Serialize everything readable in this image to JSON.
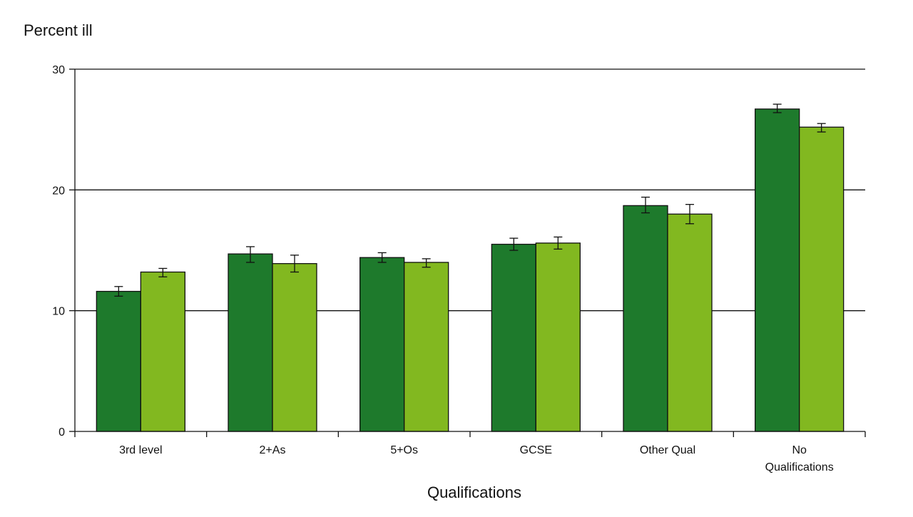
{
  "chart_data": {
    "type": "bar",
    "ylabel": "Percent ill",
    "xlabel": "Qualifications",
    "ylim": [
      0,
      30
    ],
    "yticks": [
      0,
      10,
      20,
      30
    ],
    "grid": true,
    "categories": [
      [
        "3rd level"
      ],
      [
        "2+As"
      ],
      [
        "5+Os"
      ],
      [
        "GCSE"
      ],
      [
        "Other Qual"
      ],
      [
        "No",
        "Qualifications"
      ]
    ],
    "series": [
      {
        "color": "#1e7a2c",
        "values": [
          11.6,
          14.7,
          14.4,
          15.5,
          18.7,
          26.7
        ],
        "err_low": [
          11.2,
          14.0,
          14.0,
          15.0,
          18.1,
          26.4
        ],
        "err_high": [
          12.0,
          15.3,
          14.8,
          16.0,
          19.4,
          27.1
        ]
      },
      {
        "color": "#82b820",
        "values": [
          13.2,
          13.9,
          14.0,
          15.6,
          18.0,
          25.2
        ],
        "err_low": [
          12.8,
          13.2,
          13.6,
          15.1,
          17.2,
          24.8
        ],
        "err_high": [
          13.5,
          14.6,
          14.3,
          16.1,
          18.8,
          25.5
        ]
      }
    ]
  }
}
